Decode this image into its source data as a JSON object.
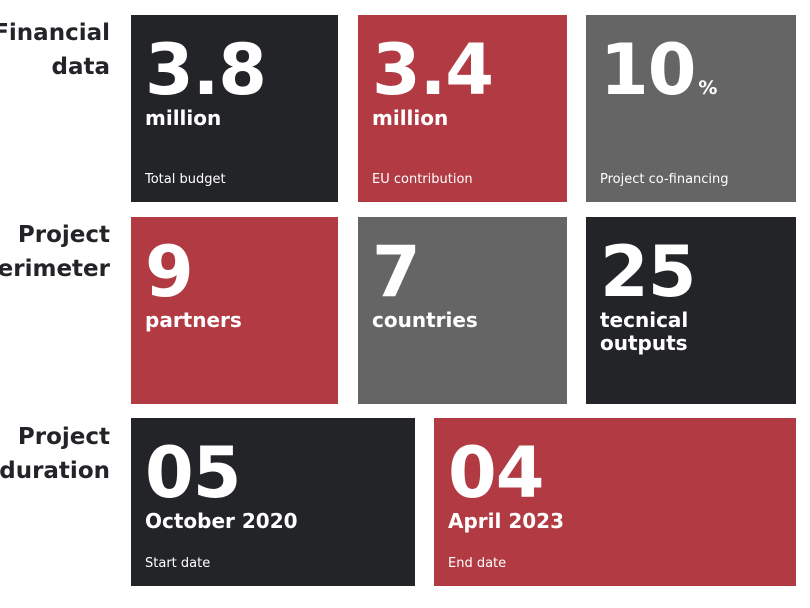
{
  "rows": {
    "financial": {
      "label_lines": [
        "Financial",
        "data"
      ],
      "tiles": [
        {
          "value": "3.8",
          "unit": "million",
          "caption": "Total budget"
        },
        {
          "value": "3.4",
          "unit": "million",
          "caption": "EU contribution"
        },
        {
          "value": "10",
          "suffix": "%",
          "caption": "Project co-financing"
        }
      ]
    },
    "perimeter": {
      "label_lines": [
        "Project",
        "perimeter"
      ],
      "tiles": [
        {
          "value": "9",
          "unit": "partners"
        },
        {
          "value": "7",
          "unit": "countries"
        },
        {
          "value": "25",
          "unit_lines": [
            "tecnical",
            "outputs"
          ]
        }
      ]
    },
    "duration": {
      "label_lines": [
        "Project",
        "duration"
      ],
      "tiles": [
        {
          "value": "05",
          "unit": "October 2020",
          "caption": "Start date"
        },
        {
          "value": "04",
          "unit": "April 2023",
          "caption": "End date"
        }
      ]
    }
  },
  "colors": {
    "dark": "#222428",
    "red": "#b13a43",
    "grey": "#656565",
    "text_on_tile": "#ffffff",
    "label_text": "#222428"
  }
}
